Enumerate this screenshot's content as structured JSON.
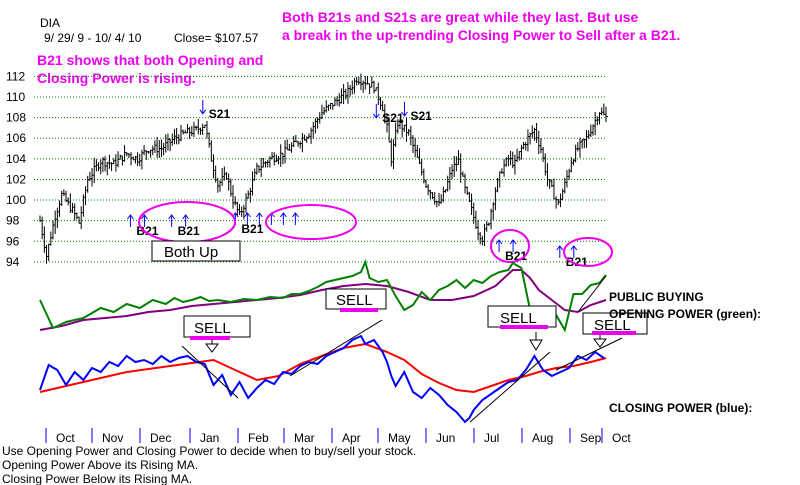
{
  "header": {
    "ticker": "DIA",
    "date_range": "9/ 29/ 9  -  10/ 4/ 10",
    "close": "Close= $107.57"
  },
  "annotations": {
    "top_line1": "Both B21s and S21s are great while they last.  But use",
    "top_line2": "a break in the up-trending Closing Power to Sell after a B21.",
    "b21_line1": "B21 shows that both Opening and",
    "b21_line2": "Closing Power is rising.",
    "both_up": "Both Up",
    "b21": "B21",
    "s21": "S21",
    "sell": "SELL",
    "public_buying": "PUBLIC BUYING",
    "opening_power": "OPENING POWER (green):",
    "closing_power": "CLOSING POWER (blue):"
  },
  "footer": {
    "line1": "Use Opening Power and Closing Power to decide when to buy/sell your stock.",
    "line2": "Opening Power Above its Rising MA.",
    "line3": "Closing Power Below its Rising MA."
  },
  "colors": {
    "price": "#000000",
    "opening_power": "#008000",
    "closing_power": "#0000ff",
    "opening_ma": "#800080",
    "closing_ma": "#ff0000",
    "annotation": "#ee00ee",
    "grid": "#008000",
    "month_tick": "#0000ff"
  },
  "chart_data": {
    "type": "bar",
    "subtype": "ohlc-with-indicators",
    "y_axis": {
      "ticks": [
        94,
        96,
        98,
        100,
        102,
        104,
        106,
        108,
        110,
        112
      ],
      "ylim": [
        93.6,
        113.4
      ],
      "grid": true
    },
    "x_axis": {
      "months": [
        "Oct",
        "Nov",
        "Dec",
        "Jan",
        "Feb",
        "Mar",
        "Apr",
        "May",
        "Jun",
        "Jul",
        "Aug",
        "Sep",
        "Oct"
      ]
    },
    "price_close_path": [
      [
        0,
        98
      ],
      [
        3,
        94.6
      ],
      [
        7,
        98.5
      ],
      [
        10,
        100.5
      ],
      [
        15,
        99
      ],
      [
        18,
        97.8
      ],
      [
        22,
        102
      ],
      [
        28,
        103.8
      ],
      [
        34,
        103.5
      ],
      [
        40,
        104.5
      ],
      [
        45,
        104
      ],
      [
        50,
        105
      ],
      [
        56,
        105
      ],
      [
        62,
        106
      ],
      [
        67,
        106.5
      ],
      [
        72,
        106.8
      ],
      [
        76,
        107.4
      ],
      [
        79,
        104
      ],
      [
        82,
        101.5
      ],
      [
        86,
        102.4
      ],
      [
        89,
        100
      ],
      [
        92,
        98.5
      ],
      [
        96,
        100.5
      ],
      [
        100,
        103
      ],
      [
        106,
        104
      ],
      [
        112,
        104.5
      ],
      [
        118,
        105.5
      ],
      [
        124,
        106.5
      ],
      [
        130,
        108.5
      ],
      [
        136,
        109.5
      ],
      [
        142,
        110.5
      ],
      [
        146,
        111.8
      ],
      [
        150,
        111.5
      ],
      [
        154,
        111
      ],
      [
        158,
        109
      ],
      [
        160,
        107
      ],
      [
        162,
        104
      ],
      [
        165,
        107.5
      ],
      [
        170,
        106.5
      ],
      [
        174,
        104
      ],
      [
        178,
        101.5
      ],
      [
        181,
        100.5
      ],
      [
        184,
        99.5
      ],
      [
        187,
        101
      ],
      [
        190,
        103
      ],
      [
        193,
        103.8
      ],
      [
        196,
        101
      ],
      [
        199,
        99
      ],
      [
        202,
        97
      ],
      [
        204,
        96.3
      ],
      [
        207,
        98
      ],
      [
        210,
        101
      ],
      [
        213,
        103
      ],
      [
        216,
        104
      ],
      [
        219,
        103.5
      ],
      [
        222,
        105
      ],
      [
        225,
        106
      ],
      [
        228,
        106.8
      ],
      [
        231,
        105
      ],
      [
        234,
        102
      ],
      [
        237,
        100.5
      ],
      [
        239,
        99.6
      ],
      [
        242,
        101.5
      ],
      [
        245,
        103.8
      ],
      [
        248,
        105
      ],
      [
        252,
        106
      ],
      [
        255,
        107.3
      ],
      [
        258,
        108.6
      ],
      [
        261,
        108
      ]
    ],
    "signals": [
      {
        "type": "S21",
        "x": 76,
        "price": 107.4
      },
      {
        "type": "S21",
        "x": 156,
        "price": 107
      },
      {
        "type": "S21",
        "x": 169,
        "price": 107.2
      },
      {
        "type": "B21",
        "x": 50
      },
      {
        "type": "B21",
        "x": 69
      },
      {
        "type": "B21",
        "x": 103
      },
      {
        "type": "B21",
        "x": 220
      },
      {
        "type": "B21",
        "x": 248
      }
    ],
    "opening_power": [
      [
        0,
        300
      ],
      [
        6,
        328
      ],
      [
        12,
        322
      ],
      [
        20,
        318
      ],
      [
        28,
        308
      ],
      [
        34,
        312
      ],
      [
        40,
        304
      ],
      [
        46,
        308
      ],
      [
        52,
        300
      ],
      [
        58,
        304
      ],
      [
        62,
        298
      ],
      [
        66,
        302
      ],
      [
        70,
        300
      ],
      [
        74,
        297
      ],
      [
        78,
        301
      ],
      [
        82,
        300
      ],
      [
        88,
        302
      ],
      [
        94,
        299
      ],
      [
        100,
        300
      ],
      [
        106,
        297
      ],
      [
        112,
        298
      ],
      [
        116,
        294
      ],
      [
        120,
        294
      ],
      [
        124,
        291
      ],
      [
        128,
        287
      ],
      [
        132,
        282
      ],
      [
        136,
        280
      ],
      [
        140,
        278
      ],
      [
        144,
        276
      ],
      [
        148,
        272
      ],
      [
        150,
        262
      ],
      [
        152,
        278
      ],
      [
        156,
        282
      ],
      [
        160,
        280
      ],
      [
        164,
        296
      ],
      [
        168,
        310
      ],
      [
        172,
        305
      ],
      [
        176,
        292
      ],
      [
        180,
        300
      ],
      [
        184,
        290
      ],
      [
        188,
        286
      ],
      [
        192,
        280
      ],
      [
        196,
        288
      ],
      [
        200,
        280
      ],
      [
        204,
        283
      ],
      [
        208,
        276
      ],
      [
        212,
        272
      ],
      [
        216,
        270
      ],
      [
        218,
        263
      ],
      [
        222,
        268
      ],
      [
        226,
        310
      ],
      [
        230,
        328
      ],
      [
        234,
        320
      ],
      [
        236,
        325
      ],
      [
        238,
        315
      ],
      [
        242,
        330
      ],
      [
        246,
        294
      ],
      [
        250,
        294
      ],
      [
        254,
        285
      ],
      [
        258,
        283
      ],
      [
        261,
        275
      ]
    ],
    "opening_power_ma": [
      [
        0,
        330
      ],
      [
        10,
        326
      ],
      [
        20,
        320
      ],
      [
        30,
        318
      ],
      [
        40,
        316
      ],
      [
        50,
        312
      ],
      [
        60,
        310
      ],
      [
        70,
        306
      ],
      [
        80,
        304
      ],
      [
        90,
        302
      ],
      [
        100,
        300
      ],
      [
        110,
        298
      ],
      [
        120,
        295
      ],
      [
        130,
        290
      ],
      [
        140,
        286
      ],
      [
        150,
        284
      ],
      [
        160,
        286
      ],
      [
        170,
        292
      ],
      [
        180,
        300
      ],
      [
        190,
        300
      ],
      [
        200,
        296
      ],
      [
        210,
        286
      ],
      [
        218,
        270
      ],
      [
        222,
        270
      ],
      [
        226,
        278
      ],
      [
        230,
        290
      ],
      [
        236,
        300
      ],
      [
        242,
        310
      ],
      [
        248,
        312
      ],
      [
        254,
        305
      ],
      [
        261,
        300
      ]
    ],
    "closing_power": [
      [
        0,
        390
      ],
      [
        4,
        365
      ],
      [
        8,
        370
      ],
      [
        12,
        385
      ],
      [
        16,
        372
      ],
      [
        20,
        380
      ],
      [
        24,
        368
      ],
      [
        28,
        372
      ],
      [
        32,
        362
      ],
      [
        36,
        366
      ],
      [
        40,
        356
      ],
      [
        44,
        362
      ],
      [
        48,
        360
      ],
      [
        52,
        364
      ],
      [
        56,
        356
      ],
      [
        60,
        362
      ],
      [
        64,
        358
      ],
      [
        68,
        356
      ],
      [
        72,
        362
      ],
      [
        76,
        364
      ],
      [
        80,
        385
      ],
      [
        84,
        375
      ],
      [
        88,
        395
      ],
      [
        92,
        382
      ],
      [
        96,
        398
      ],
      [
        100,
        388
      ],
      [
        104,
        380
      ],
      [
        108,
        384
      ],
      [
        112,
        372
      ],
      [
        116,
        374
      ],
      [
        120,
        366
      ],
      [
        124,
        362
      ],
      [
        128,
        364
      ],
      [
        132,
        356
      ],
      [
        136,
        352
      ],
      [
        140,
        348
      ],
      [
        144,
        340
      ],
      [
        148,
        336
      ],
      [
        150,
        344
      ],
      [
        154,
        340
      ],
      [
        158,
        352
      ],
      [
        160,
        362
      ],
      [
        162,
        376
      ],
      [
        164,
        386
      ],
      [
        168,
        372
      ],
      [
        172,
        392
      ],
      [
        176,
        398
      ],
      [
        180,
        388
      ],
      [
        184,
        395
      ],
      [
        188,
        405
      ],
      [
        192,
        412
      ],
      [
        196,
        422
      ],
      [
        198,
        418
      ],
      [
        200,
        410
      ],
      [
        204,
        400
      ],
      [
        208,
        394
      ],
      [
        212,
        388
      ],
      [
        216,
        382
      ],
      [
        220,
        380
      ],
      [
        224,
        370
      ],
      [
        228,
        356
      ],
      [
        232,
        370
      ],
      [
        236,
        376
      ],
      [
        240,
        372
      ],
      [
        244,
        368
      ],
      [
        248,
        356
      ],
      [
        252,
        360
      ],
      [
        256,
        352
      ],
      [
        260,
        358
      ]
    ],
    "closing_power_ma": [
      [
        0,
        392
      ],
      [
        20,
        382
      ],
      [
        40,
        372
      ],
      [
        60,
        366
      ],
      [
        80,
        360
      ],
      [
        90,
        370
      ],
      [
        100,
        380
      ],
      [
        110,
        376
      ],
      [
        120,
        364
      ],
      [
        130,
        356
      ],
      [
        140,
        348
      ],
      [
        150,
        344
      ],
      [
        160,
        352
      ],
      [
        168,
        360
      ],
      [
        176,
        374
      ],
      [
        184,
        383
      ],
      [
        192,
        390
      ],
      [
        200,
        392
      ],
      [
        208,
        386
      ],
      [
        216,
        380
      ],
      [
        224,
        376
      ],
      [
        230,
        372
      ],
      [
        238,
        368
      ],
      [
        246,
        366
      ],
      [
        254,
        362
      ],
      [
        261,
        358
      ]
    ]
  }
}
